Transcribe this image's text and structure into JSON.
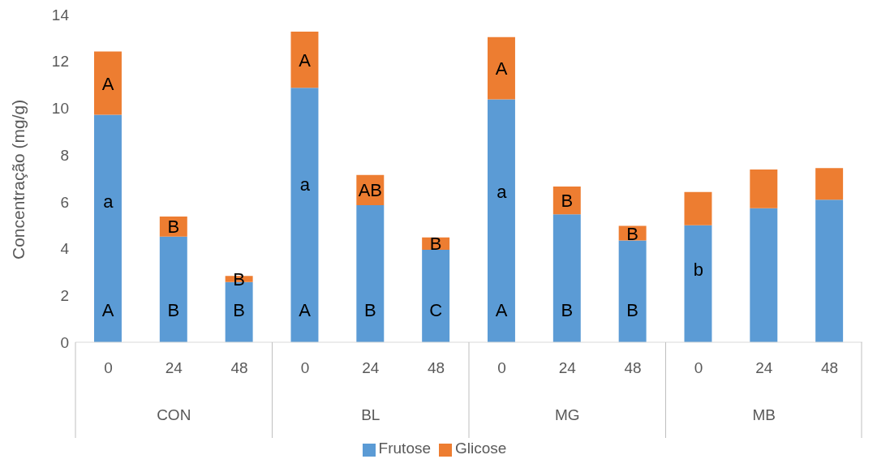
{
  "chart_data": {
    "type": "bar",
    "stacked": true,
    "ylabel": "Concentração (mg/g)",
    "categories": [
      "0",
      "24",
      "48",
      "0",
      "24",
      "48",
      "0",
      "24",
      "48",
      "0",
      "24",
      "48"
    ],
    "series": [
      {
        "name": "Frutose",
        "color": "#5b9bd5",
        "values": [
          9.72,
          4.51,
          2.57,
          10.87,
          5.86,
          3.95,
          10.38,
          5.47,
          4.35,
          5.0,
          5.73,
          6.09
        ],
        "value_labels": [
          "A",
          "B",
          "B",
          "A",
          "B",
          "C",
          "A",
          "B",
          "B",
          null,
          null,
          null
        ]
      },
      {
        "name": "Glicose",
        "color": "#ed7d31",
        "values": [
          2.7,
          0.86,
          0.26,
          2.4,
          1.29,
          0.53,
          2.66,
          1.18,
          0.62,
          1.42,
          1.65,
          1.35
        ],
        "value_labels": [
          "A",
          "B",
          "B",
          "A",
          "AB",
          "B",
          "A",
          "B",
          "B",
          null,
          null,
          null
        ]
      }
    ],
    "ylim": [
      0,
      14
    ],
    "yticks": [
      0,
      2,
      4,
      6,
      8,
      10,
      12,
      14
    ],
    "legend": "bottom",
    "annotations": [
      "CON",
      "BL",
      "MG",
      "MB",
      "a",
      "a",
      "a",
      "b"
    ]
  }
}
